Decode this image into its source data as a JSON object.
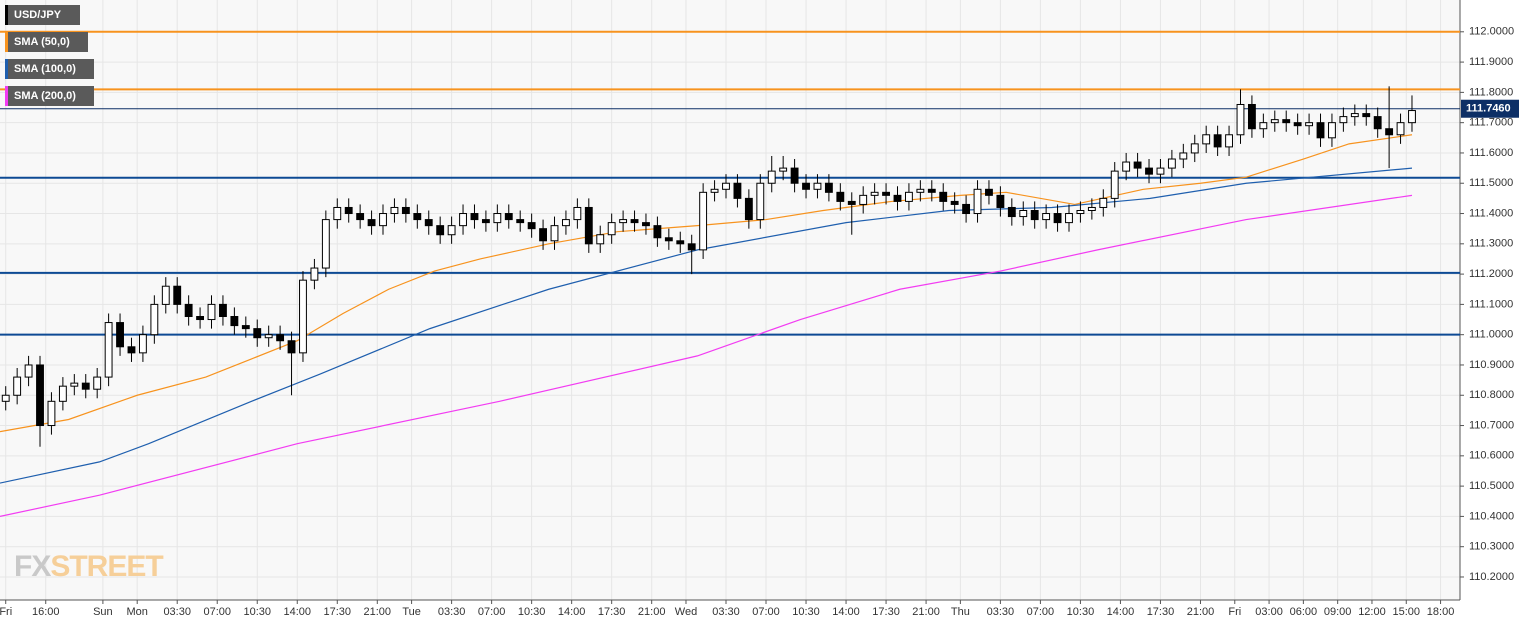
{
  "chart_data": {
    "type": "candlestick",
    "instrument": "USD/JPY",
    "instrument_color": "#000000",
    "up_color": "#ffffff",
    "down_color": "#000000",
    "x": [
      0.5,
      1.5,
      2.5,
      3.5,
      4.5,
      5.5,
      6.5,
      7.5,
      8.5,
      9.5,
      10.5,
      11.5,
      12.5,
      13.5,
      14.5,
      15.5,
      16.5,
      17.5,
      18.5,
      19.5,
      20.5,
      21.5,
      22.5,
      23.5,
      24.5,
      25.5,
      26.5,
      27.5,
      28.5,
      29.5,
      30.5,
      31.5,
      32.5,
      33.5,
      34.5,
      35.5,
      36.5,
      37.5,
      38.5,
      39.5,
      40.5,
      41.5,
      42.5,
      43.5,
      44.5,
      45.5,
      46.5,
      47.5,
      48.5,
      49.5,
      50.5,
      51.5,
      52.5,
      53.5,
      54.5,
      55.5,
      56.5,
      57.5,
      58.5,
      59.5,
      60.5,
      61.5,
      62.5,
      63.5,
      64.5,
      65.5,
      66.5,
      67.5,
      68.5,
      69.5,
      70.5,
      71.5,
      72.5,
      73.5,
      74.5,
      75.5,
      76.5,
      77.5,
      78.5,
      79.5,
      80.5,
      81.5,
      82.5,
      83.5,
      84.5,
      85.5,
      86.5,
      87.5,
      88.5,
      89.5,
      90.5,
      91.5,
      92.5,
      93.5,
      94.5,
      95.5,
      96.5,
      97.5,
      98.5,
      99.5,
      100.5,
      101.5,
      102.5,
      103.5,
      104.5,
      105.5,
      106.5,
      107.5,
      108.5,
      109.5,
      110.5,
      111.5,
      112.5,
      113.5,
      114.5,
      115.5,
      116.5,
      117.5,
      118.5,
      119.5,
      120.5,
      121.5,
      122.5,
      123.5
    ],
    "open": [
      110.78,
      110.8,
      110.86,
      110.9,
      110.7,
      110.78,
      110.83,
      110.84,
      110.82,
      110.86,
      111.04,
      110.96,
      110.94,
      111.0,
      111.1,
      111.16,
      111.1,
      111.06,
      111.05,
      111.1,
      111.06,
      111.03,
      111.02,
      110.99,
      111.0,
      110.98,
      110.94,
      111.18,
      111.22,
      111.38,
      111.42,
      111.4,
      111.38,
      111.36,
      111.4,
      111.42,
      111.4,
      111.38,
      111.36,
      111.33,
      111.36,
      111.4,
      111.38,
      111.37,
      111.4,
      111.38,
      111.37,
      111.35,
      111.31,
      111.36,
      111.38,
      111.42,
      111.3,
      111.33,
      111.37,
      111.38,
      111.37,
      111.36,
      111.32,
      111.31,
      111.3,
      111.28,
      111.47,
      111.48,
      111.5,
      111.45,
      111.38,
      111.5,
      111.54,
      111.55,
      111.5,
      111.48,
      111.5,
      111.47,
      111.44,
      111.43,
      111.46,
      111.47,
      111.46,
      111.44,
      111.47,
      111.48,
      111.47,
      111.44,
      111.43,
      111.4,
      111.48,
      111.46,
      111.42,
      111.39,
      111.41,
      111.38,
      111.4,
      111.37,
      111.4,
      111.41,
      111.42,
      111.45,
      111.54,
      111.57,
      111.55,
      111.53,
      111.55,
      111.58,
      111.6,
      111.63,
      111.66,
      111.62,
      111.66,
      111.76,
      111.68,
      111.7,
      111.71,
      111.7,
      111.69,
      111.7,
      111.65,
      111.7,
      111.72,
      111.73,
      111.72,
      111.68,
      111.66,
      111.7
    ],
    "high": [
      110.83,
      110.89,
      110.93,
      110.93,
      110.81,
      110.86,
      110.87,
      110.87,
      110.89,
      111.07,
      111.07,
      110.99,
      111.03,
      111.13,
      111.19,
      111.19,
      111.13,
      111.09,
      111.13,
      111.13,
      111.09,
      111.06,
      111.05,
      111.03,
      111.03,
      111.01,
      111.21,
      111.25,
      111.41,
      111.45,
      111.45,
      111.43,
      111.41,
      111.43,
      111.45,
      111.45,
      111.43,
      111.41,
      111.39,
      111.39,
      111.43,
      111.43,
      111.41,
      111.43,
      111.43,
      111.41,
      111.4,
      111.38,
      111.39,
      111.41,
      111.45,
      111.45,
      111.36,
      111.4,
      111.41,
      111.41,
      111.4,
      111.39,
      111.35,
      111.34,
      111.33,
      111.5,
      111.51,
      111.53,
      111.53,
      111.48,
      111.53,
      111.59,
      111.59,
      111.58,
      111.53,
      111.53,
      111.53,
      111.5,
      111.47,
      111.49,
      111.5,
      111.5,
      111.49,
      111.5,
      111.51,
      111.51,
      111.5,
      111.47,
      111.46,
      111.51,
      111.51,
      111.49,
      111.45,
      111.44,
      111.44,
      111.43,
      111.43,
      111.43,
      111.44,
      111.45,
      111.48,
      111.57,
      111.6,
      111.6,
      111.58,
      111.58,
      111.61,
      111.63,
      111.66,
      111.69,
      111.69,
      111.69,
      111.81,
      111.79,
      111.73,
      111.74,
      111.74,
      111.73,
      111.73,
      111.73,
      111.73,
      111.75,
      111.76,
      111.76,
      111.75,
      111.82,
      111.73,
      111.79
    ],
    "low": [
      110.75,
      110.77,
      110.83,
      110.63,
      110.67,
      110.75,
      110.8,
      110.79,
      110.79,
      110.83,
      110.93,
      110.91,
      110.91,
      110.97,
      111.07,
      111.07,
      111.03,
      111.02,
      111.02,
      111.03,
      111.0,
      110.99,
      110.96,
      110.96,
      110.95,
      110.8,
      110.91,
      111.15,
      111.19,
      111.35,
      111.37,
      111.35,
      111.33,
      111.33,
      111.37,
      111.37,
      111.35,
      111.33,
      111.3,
      111.3,
      111.33,
      111.35,
      111.34,
      111.34,
      111.35,
      111.34,
      111.32,
      111.28,
      111.28,
      111.33,
      111.35,
      111.27,
      111.27,
      111.3,
      111.34,
      111.34,
      111.33,
      111.29,
      111.28,
      111.27,
      111.2,
      111.25,
      111.44,
      111.45,
      111.42,
      111.35,
      111.35,
      111.47,
      111.51,
      111.47,
      111.45,
      111.45,
      111.44,
      111.41,
      111.33,
      111.4,
      111.43,
      111.43,
      111.41,
      111.41,
      111.44,
      111.44,
      111.41,
      111.4,
      111.37,
      111.37,
      111.43,
      111.39,
      111.36,
      111.36,
      111.35,
      111.35,
      111.34,
      111.34,
      111.37,
      111.38,
      111.39,
      111.42,
      111.51,
      111.52,
      111.5,
      111.5,
      111.52,
      111.55,
      111.57,
      111.6,
      111.59,
      111.59,
      111.63,
      111.65,
      111.65,
      111.67,
      111.67,
      111.66,
      111.66,
      111.62,
      111.62,
      111.67,
      111.69,
      111.69,
      111.65,
      111.55,
      111.63,
      111.67
    ],
    "close": [
      110.8,
      110.86,
      110.9,
      110.7,
      110.78,
      110.83,
      110.84,
      110.82,
      110.86,
      111.04,
      110.96,
      110.94,
      111.0,
      111.1,
      111.16,
      111.1,
      111.06,
      111.05,
      111.1,
      111.06,
      111.03,
      111.02,
      110.99,
      111.0,
      110.98,
      110.94,
      111.18,
      111.22,
      111.38,
      111.42,
      111.4,
      111.38,
      111.36,
      111.4,
      111.42,
      111.4,
      111.38,
      111.36,
      111.33,
      111.36,
      111.4,
      111.38,
      111.37,
      111.4,
      111.38,
      111.37,
      111.35,
      111.31,
      111.36,
      111.38,
      111.42,
      111.3,
      111.33,
      111.37,
      111.38,
      111.37,
      111.36,
      111.32,
      111.31,
      111.3,
      111.28,
      111.47,
      111.48,
      111.5,
      111.45,
      111.38,
      111.5,
      111.54,
      111.55,
      111.5,
      111.48,
      111.5,
      111.47,
      111.44,
      111.43,
      111.46,
      111.47,
      111.46,
      111.44,
      111.47,
      111.48,
      111.47,
      111.44,
      111.43,
      111.4,
      111.48,
      111.46,
      111.42,
      111.39,
      111.41,
      111.38,
      111.4,
      111.37,
      111.4,
      111.41,
      111.42,
      111.45,
      111.54,
      111.57,
      111.55,
      111.53,
      111.55,
      111.58,
      111.6,
      111.63,
      111.66,
      111.62,
      111.66,
      111.76,
      111.68,
      111.7,
      111.71,
      111.7,
      111.69,
      111.7,
      111.65,
      111.7,
      111.72,
      111.73,
      111.72,
      111.68,
      111.66,
      111.7,
      111.74
    ],
    "series": [
      {
        "name": "SMA (50,0)",
        "color": "#f7931e",
        "x": [
          0,
          6,
          12,
          18,
          22,
          26,
          30,
          34,
          38,
          42,
          48,
          54,
          61,
          67,
          72,
          78,
          84,
          88,
          94,
          100,
          105,
          109,
          114,
          118,
          123.5
        ],
        "values": [
          110.68,
          110.72,
          110.8,
          110.86,
          110.92,
          110.98,
          111.07,
          111.15,
          111.21,
          111.25,
          111.3,
          111.34,
          111.36,
          111.38,
          111.41,
          111.44,
          111.46,
          111.47,
          111.43,
          111.48,
          111.5,
          111.52,
          111.58,
          111.63,
          111.66
        ]
      },
      {
        "name": "SMA (100,0)",
        "color": "#1f5fae",
        "x": [
          0,
          8.7,
          13,
          22,
          28,
          37.6,
          48,
          61,
          74,
          83,
          92,
          100.6,
          109,
          123.5
        ],
        "values": [
          110.51,
          110.58,
          110.64,
          110.78,
          110.87,
          111.02,
          111.15,
          111.28,
          111.37,
          111.41,
          111.42,
          111.45,
          111.5,
          111.55
        ]
      },
      {
        "name": "SMA (200,0)",
        "color": "#f23cf2",
        "x": [
          0,
          8.7,
          26,
          43.7,
          61,
          70,
          78.7,
          87.5,
          96,
          109,
          123.5
        ],
        "values": [
          110.4,
          110.47,
          110.64,
          110.78,
          110.93,
          111.05,
          111.15,
          111.21,
          111.28,
          111.38,
          111.46
        ]
      }
    ],
    "levels": [
      {
        "value": 112.0,
        "color": "#f7931e"
      },
      {
        "value": 111.81,
        "color": "#f7931e"
      },
      {
        "value": 111.518,
        "color": "#0d4a94"
      },
      {
        "value": 111.204,
        "color": "#0d4a94"
      },
      {
        "value": 111.0,
        "color": "#0d4a94"
      }
    ],
    "last_price": {
      "value": 111.746,
      "label": "111.7460"
    },
    "watermark": [
      "FX",
      "STREET"
    ],
    "xlim": [
      0,
      127.7
    ],
    "ylim": [
      110.124,
      112.105
    ],
    "grid": true,
    "xticks": [
      {
        "value": 0.5,
        "label": "Fri"
      },
      {
        "value": 4,
        "label": "16:00"
      },
      {
        "value": 9,
        "label": "Sun"
      },
      {
        "value": 12,
        "label": "Mon"
      },
      {
        "value": 15.5,
        "label": "03:30"
      },
      {
        "value": 19,
        "label": "07:00"
      },
      {
        "value": 22.5,
        "label": "10:30"
      },
      {
        "value": 26,
        "label": "14:00"
      },
      {
        "value": 29.5,
        "label": "17:30"
      },
      {
        "value": 33,
        "label": "21:00"
      },
      {
        "value": 36,
        "label": "Tue"
      },
      {
        "value": 39.5,
        "label": "03:30"
      },
      {
        "value": 43,
        "label": "07:00"
      },
      {
        "value": 46.5,
        "label": "10:30"
      },
      {
        "value": 50,
        "label": "14:00"
      },
      {
        "value": 53.5,
        "label": "17:30"
      },
      {
        "value": 57,
        "label": "21:00"
      },
      {
        "value": 60,
        "label": "Wed"
      },
      {
        "value": 63.5,
        "label": "03:30"
      },
      {
        "value": 67,
        "label": "07:00"
      },
      {
        "value": 70.5,
        "label": "10:30"
      },
      {
        "value": 74,
        "label": "14:00"
      },
      {
        "value": 77.5,
        "label": "17:30"
      },
      {
        "value": 81,
        "label": "21:00"
      },
      {
        "value": 84,
        "label": "Thu"
      },
      {
        "value": 87.5,
        "label": "03:30"
      },
      {
        "value": 91,
        "label": "07:00"
      },
      {
        "value": 94.5,
        "label": "10:30"
      },
      {
        "value": 98,
        "label": "14:00"
      },
      {
        "value": 101.5,
        "label": "17:30"
      },
      {
        "value": 105,
        "label": "21:00"
      },
      {
        "value": 108,
        "label": "Fri"
      },
      {
        "value": 111,
        "label": "03:00"
      },
      {
        "value": 114,
        "label": "06:00"
      },
      {
        "value": 117,
        "label": "09:00"
      },
      {
        "value": 120,
        "label": "12:00"
      },
      {
        "value": 123,
        "label": "15:00"
      },
      {
        "value": 126,
        "label": "18:00"
      }
    ],
    "yticks": [
      {
        "value": 110.2,
        "label": "110.2000"
      },
      {
        "value": 110.3,
        "label": "110.3000"
      },
      {
        "value": 110.4,
        "label": "110.4000"
      },
      {
        "value": 110.5,
        "label": "110.5000"
      },
      {
        "value": 110.6,
        "label": "110.6000"
      },
      {
        "value": 110.7,
        "label": "110.7000"
      },
      {
        "value": 110.8,
        "label": "110.8000"
      },
      {
        "value": 110.9,
        "label": "110.9000"
      },
      {
        "value": 111.0,
        "label": "111.0000"
      },
      {
        "value": 111.1,
        "label": "111.1000"
      },
      {
        "value": 111.2,
        "label": "111.2000"
      },
      {
        "value": 111.3,
        "label": "111.3000"
      },
      {
        "value": 111.4,
        "label": "111.4000"
      },
      {
        "value": 111.5,
        "label": "111.5000"
      },
      {
        "value": 111.6,
        "label": "111.6000"
      },
      {
        "value": 111.7,
        "label": "111.7000"
      },
      {
        "value": 111.8,
        "label": "111.8000"
      },
      {
        "value": 111.9,
        "label": "111.9000"
      },
      {
        "value": 112.0,
        "label": "112.0000"
      }
    ]
  }
}
